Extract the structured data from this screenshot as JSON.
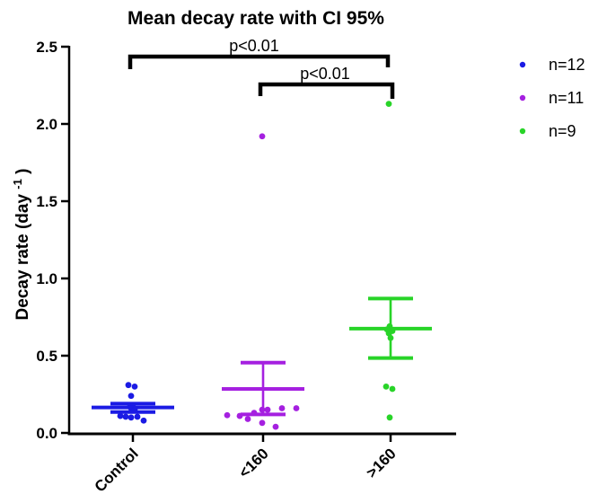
{
  "chart_data": {
    "type": "scatter",
    "title": "Mean decay rate with CI 95%",
    "ylabel": "Decay rate (day⁻¹)",
    "ylabel_parts": {
      "base": "Decay rate (day",
      "sup": "-1",
      "close": ")"
    },
    "xlabel": "",
    "ylim": [
      0,
      2.5
    ],
    "yticks": [
      "0.0",
      "0.5",
      "1.0",
      "1.5",
      "2.0",
      "2.5"
    ],
    "ytick_values": [
      0.0,
      0.5,
      1.0,
      1.5,
      2.0,
      2.5
    ],
    "grid": false,
    "error_bar_style": "mean with 95% CI",
    "groups": [
      {
        "label": "Control",
        "n_label": "n=12",
        "color": "#1b1be4",
        "mean": 0.165,
        "ci_low": 0.135,
        "ci_high": 0.19,
        "points_dx_value": [
          [
            -5,
            0.31
          ],
          [
            2,
            0.3
          ],
          [
            -2,
            0.24
          ],
          [
            -3,
            0.18
          ],
          [
            0,
            0.17
          ],
          [
            -2,
            0.16
          ],
          [
            2,
            0.15
          ],
          [
            -14,
            0.11
          ],
          [
            -8,
            0.105
          ],
          [
            5,
            0.105
          ],
          [
            -2,
            0.1
          ],
          [
            12,
            0.08
          ]
        ]
      },
      {
        "label": "<160",
        "n_label": "n=11",
        "color": "#a520e0",
        "mean": 0.285,
        "ci_low": 0.12,
        "ci_high": 0.455,
        "points_dx_value": [
          [
            -1,
            1.92
          ],
          [
            21,
            0.16
          ],
          [
            37,
            0.16
          ],
          [
            -1,
            0.15
          ],
          [
            5,
            0.15
          ],
          [
            -10,
            0.13
          ],
          [
            -40,
            0.115
          ],
          [
            -26,
            0.11
          ],
          [
            -17,
            0.09
          ],
          [
            -1,
            0.065
          ],
          [
            14,
            0.04
          ]
        ]
      },
      {
        "label": ">160",
        "n_label": "n=9",
        "color": "#28d428",
        "mean": 0.675,
        "ci_low": 0.485,
        "ci_high": 0.87,
        "points_dx_value": [
          [
            -2,
            2.13
          ],
          [
            -1,
            0.69
          ],
          [
            -4,
            0.67
          ],
          [
            2,
            0.66
          ],
          [
            -2,
            0.645
          ],
          [
            0,
            0.615
          ],
          [
            -5,
            0.3
          ],
          [
            2,
            0.285
          ],
          [
            -1,
            0.1
          ]
        ]
      }
    ],
    "comparisons": [
      {
        "from": "Control",
        "to": ">160",
        "label": "p<0.01"
      },
      {
        "from": "<160",
        "to": ">160",
        "label": "p<0.01"
      }
    ],
    "legend": {
      "position": "right",
      "items": [
        {
          "label": "n=12",
          "color": "#1b1be4"
        },
        {
          "label": "n=11",
          "color": "#a520e0"
        },
        {
          "label": "n=9",
          "color": "#28d428"
        }
      ]
    }
  }
}
